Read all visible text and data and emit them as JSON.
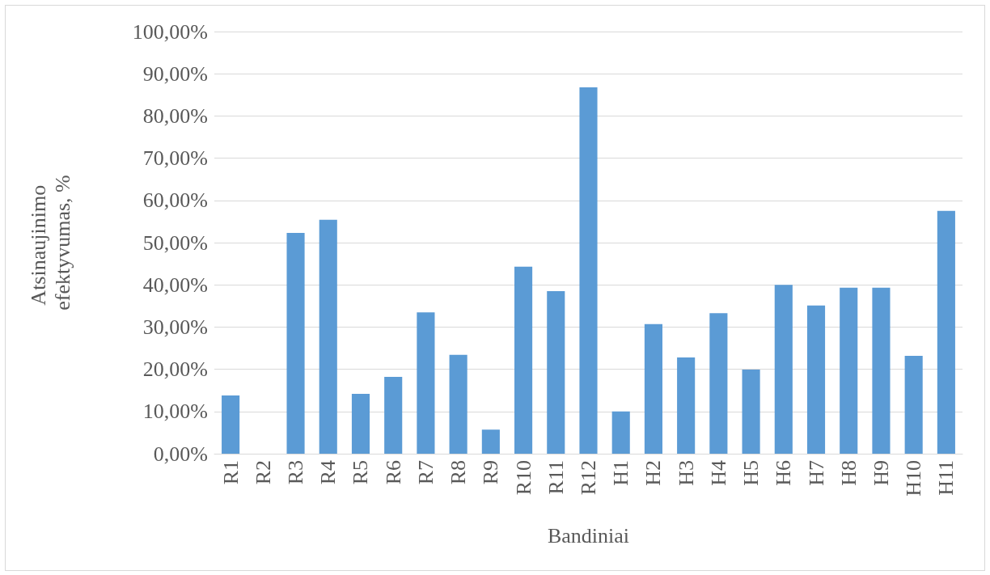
{
  "chart_data": {
    "type": "bar",
    "xlabel": "Bandiniai",
    "ylabel": "Atsinaujinimo efektyvumas, %",
    "categories": [
      "R1",
      "R2",
      "R3",
      "R4",
      "R5",
      "R6",
      "R7",
      "R8",
      "R9",
      "R10",
      "R11",
      "R12",
      "H1",
      "H2",
      "H3",
      "H4",
      "H5",
      "H6",
      "H7",
      "H8",
      "H9",
      "H10",
      "H11"
    ],
    "values": [
      13.8,
      0,
      52.3,
      55.4,
      14.2,
      18.2,
      33.5,
      23.4,
      5.7,
      44.3,
      38.5,
      86.8,
      10.0,
      30.7,
      22.8,
      33.3,
      19.9,
      40.0,
      35.1,
      39.3,
      39.3,
      23.2,
      57.5
    ],
    "color": "#5b9bd5",
    "ylim": [
      0,
      100
    ],
    "yticks": [
      {
        "value": 0,
        "label": "0,00%"
      },
      {
        "value": 10,
        "label": "10,00%"
      },
      {
        "value": 20,
        "label": "20,00%"
      },
      {
        "value": 30,
        "label": "30,00%"
      },
      {
        "value": 40,
        "label": "40,00%"
      },
      {
        "value": 50,
        "label": "50,00%"
      },
      {
        "value": 60,
        "label": "60,00%"
      },
      {
        "value": 70,
        "label": "70,00%"
      },
      {
        "value": 80,
        "label": "80,00%"
      },
      {
        "value": 90,
        "label": "90,00%"
      },
      {
        "value": 100,
        "label": "100,00%"
      }
    ],
    "grid": "y"
  }
}
